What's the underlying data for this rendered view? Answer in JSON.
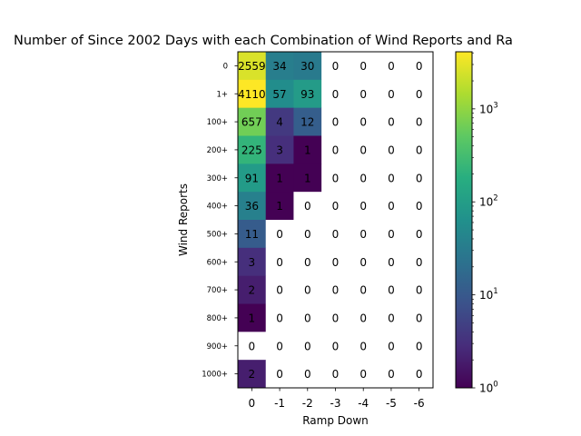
{
  "chart_data": {
    "type": "heatmap",
    "title": "Number of Since 2002 Days with each Combination of Wind Reports and Ra",
    "xlabel": "Ramp Down",
    "ylabel": "Wind Reports",
    "x_categories": [
      "0",
      "-1",
      "-2",
      "-3",
      "-4",
      "-5",
      "-6"
    ],
    "y_categories": [
      "0",
      "1+",
      "100+",
      "200+",
      "300+",
      "400+",
      "500+",
      "600+",
      "700+",
      "800+",
      "900+",
      "1000+"
    ],
    "values": [
      [
        2559,
        34,
        30,
        0,
        0,
        0,
        0
      ],
      [
        4110,
        57,
        93,
        0,
        0,
        0,
        0
      ],
      [
        657,
        4,
        12,
        0,
        0,
        0,
        0
      ],
      [
        225,
        3,
        1,
        0,
        0,
        0,
        0
      ],
      [
        91,
        1,
        1,
        0,
        0,
        0,
        0
      ],
      [
        36,
        1,
        0,
        0,
        0,
        0,
        0
      ],
      [
        11,
        0,
        0,
        0,
        0,
        0,
        0
      ],
      [
        3,
        0,
        0,
        0,
        0,
        0,
        0
      ],
      [
        2,
        0,
        0,
        0,
        0,
        0,
        0
      ],
      [
        1,
        0,
        0,
        0,
        0,
        0,
        0
      ],
      [
        0,
        0,
        0,
        0,
        0,
        0,
        0
      ],
      [
        2,
        0,
        0,
        0,
        0,
        0,
        0
      ]
    ],
    "color_scale": "log",
    "colormap": "viridis",
    "colorbar_range": [
      1,
      4110
    ],
    "colorbar_ticks": [
      {
        "value": 1,
        "label": "10",
        "exp": "0"
      },
      {
        "value": 10,
        "label": "10",
        "exp": "1"
      },
      {
        "value": 100,
        "label": "10",
        "exp": "2"
      },
      {
        "value": 1000,
        "label": "10",
        "exp": "3"
      }
    ],
    "zero_cell_color": "#ffffff",
    "grid": false
  }
}
